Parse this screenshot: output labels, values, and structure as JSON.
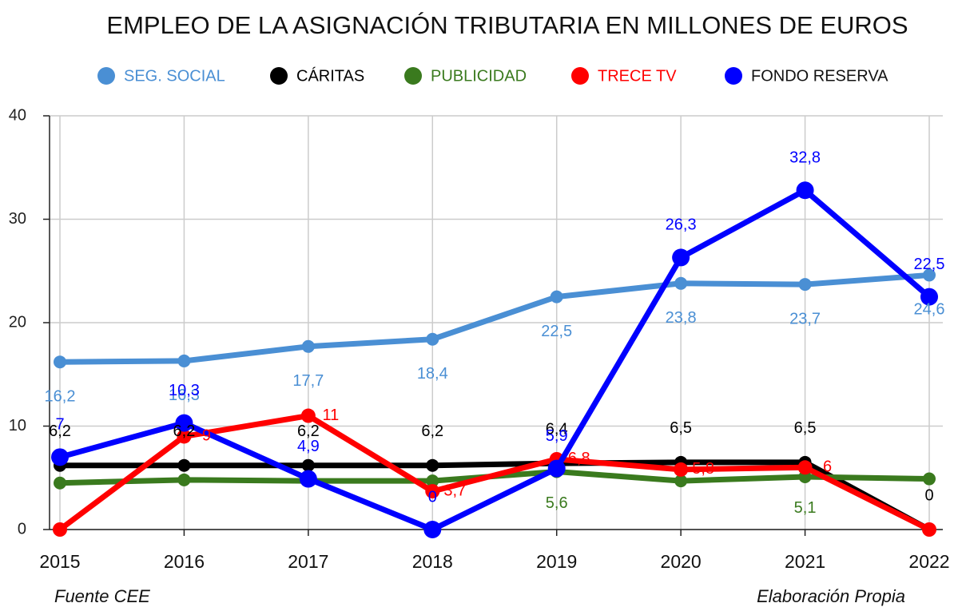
{
  "chart_data": {
    "type": "line",
    "title": "EMPLEO DE LA ASIGNACIÓN TRIBUTARIA EN MILLONES DE EUROS",
    "categories": [
      "2015",
      "2016",
      "2017",
      "2018",
      "2019",
      "2020",
      "2021",
      "2022"
    ],
    "series": [
      {
        "name": "SEG. SOCIAL",
        "color": "#4a8fd4",
        "values": [
          16.2,
          16.3,
          17.7,
          18.4,
          22.5,
          23.8,
          23.7,
          24.6
        ],
        "value_labels": [
          "16,2",
          "16,3",
          "17,7",
          "18,4",
          "22,5",
          "23,8",
          "23,7",
          "24,6"
        ]
      },
      {
        "name": "CÁRITAS",
        "color": "#000000",
        "values": [
          6.2,
          6.2,
          6.2,
          6.2,
          6.4,
          6.5,
          6.5,
          0
        ],
        "value_labels": [
          "6,2",
          "6,2",
          "6,2",
          "6,2",
          "6,4",
          "6,5",
          "6,5",
          "0"
        ]
      },
      {
        "name": "PUBLICIDAD",
        "color": "#3a7a1e",
        "values": [
          4.5,
          4.8,
          4.7,
          4.7,
          5.6,
          4.7,
          5.1,
          4.9
        ],
        "value_labels": [
          null,
          null,
          null,
          null,
          "5,6",
          null,
          "5,1",
          null
        ]
      },
      {
        "name": "TRECE TV",
        "color": "#ff0000",
        "values": [
          0,
          9,
          11,
          3.7,
          6.8,
          5.8,
          6,
          0
        ],
        "value_labels": [
          null,
          "9",
          "11",
          "3,7",
          "6,8",
          "5,8",
          "6",
          null
        ]
      },
      {
        "name": "FONDO RESERVA",
        "color": "#0000ff",
        "values": [
          7,
          10.3,
          4.9,
          0,
          5.9,
          26.3,
          32.8,
          22.5
        ],
        "value_labels": [
          "7",
          "10,3",
          "4,9",
          "0",
          "5,9",
          "26,3",
          "32,8",
          "22,5"
        ]
      }
    ],
    "ylim": [
      0,
      40
    ],
    "yticks": [
      0,
      10,
      20,
      30,
      40
    ],
    "grid": true,
    "source": "Fuente CEE",
    "credit": "Elaboración Propia"
  }
}
